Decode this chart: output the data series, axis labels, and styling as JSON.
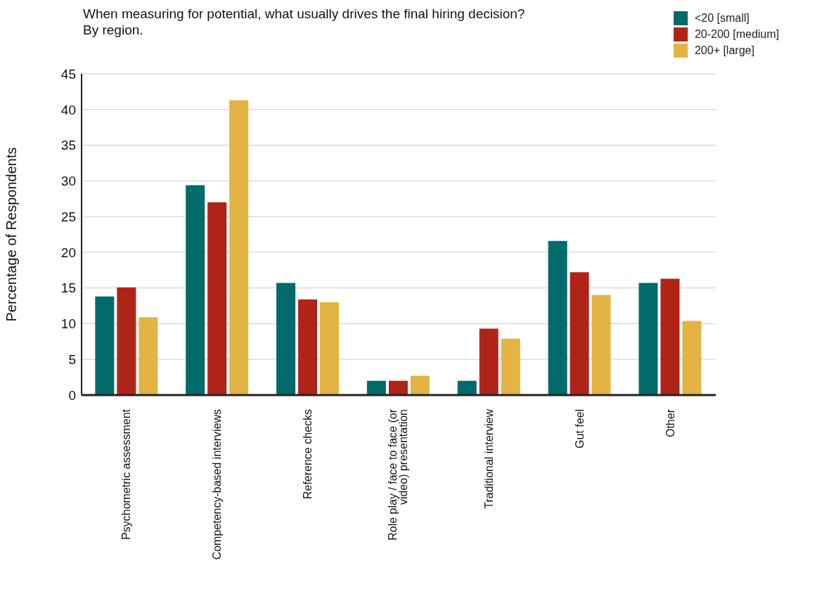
{
  "chart_data": {
    "type": "bar",
    "title": "When measuring for potential, what usually drives the final hiring decision?\nBy region.",
    "ylabel": "Percentage of Respondents",
    "categories": [
      "Psychometric assessment",
      "Competency-based interviews",
      "Reference checks",
      "Role play / face to face (or video) presentation",
      "Traditional interview",
      "Gut feel",
      "Other"
    ],
    "series": [
      {
        "name": "<20 [small]",
        "color": "#006b6b",
        "values": [
          13.8,
          29.4,
          15.7,
          2.0,
          2.0,
          21.6,
          15.7
        ]
      },
      {
        "name": "20-200 [medium]",
        "color": "#b02418",
        "values": [
          15.1,
          27.0,
          13.4,
          2.0,
          9.3,
          17.2,
          16.3
        ]
      },
      {
        "name": "200+ [large]",
        "color": "#e3b444",
        "values": [
          10.9,
          41.3,
          13.0,
          2.7,
          7.9,
          14.0,
          10.4
        ]
      }
    ],
    "ylim": [
      0,
      45
    ],
    "yticks": [
      0,
      5,
      10,
      15,
      20,
      25,
      30,
      35,
      40,
      45
    ],
    "grid": "y",
    "legend": "top right"
  }
}
